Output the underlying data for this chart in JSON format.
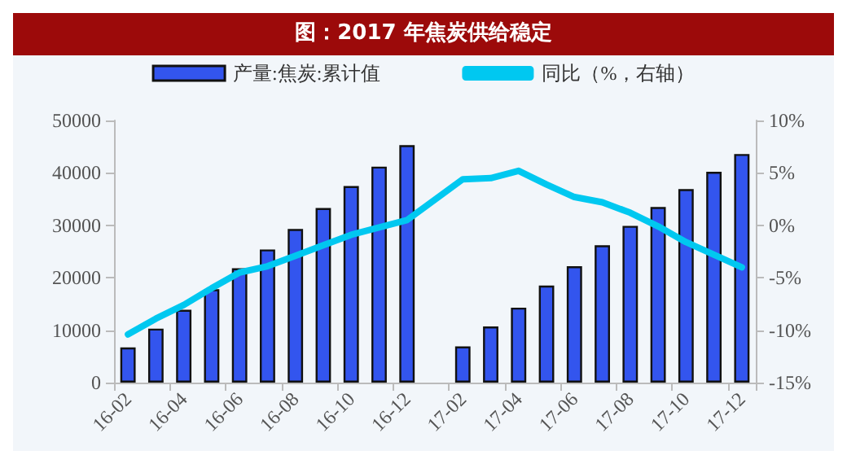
{
  "chart_data": {
    "type": "bar",
    "title": "图：2017 年焦炭供给稳定",
    "categories": [
      "16-02",
      null,
      "16-04",
      null,
      "16-06",
      null,
      "16-08",
      null,
      "16-10",
      null,
      "16-12",
      null,
      "17-02",
      null,
      "17-04",
      null,
      "17-06",
      null,
      "17-08",
      null,
      "17-10",
      null,
      "17-12"
    ],
    "series": [
      {
        "name": "产量:焦炭:累计值",
        "color": "#3355ee",
        "values": [
          6700,
          10300,
          13900,
          17800,
          21800,
          25400,
          29300,
          33300,
          37500,
          41200,
          45300,
          null,
          6900,
          10700,
          14300,
          18500,
          22200,
          26200,
          29900,
          33500,
          36900,
          40200,
          43600
        ]
      },
      {
        "name": "同比（%，右轴）",
        "type": "line",
        "axis": "y2",
        "color": "#00c8f0",
        "values": [
          -10.4,
          -8.9,
          -7.6,
          -6.0,
          -4.5,
          -3.9,
          -2.9,
          -1.9,
          -0.9,
          -0.2,
          0.5,
          null,
          4.4,
          4.5,
          5.2,
          3.9,
          2.7,
          2.2,
          1.2,
          -0.1,
          -1.6,
          -2.8,
          -4.0
        ]
      }
    ],
    "ylim": [
      0,
      50000
    ],
    "yticks": [
      0,
      10000,
      20000,
      30000,
      40000,
      50000
    ],
    "y2lim": [
      -15,
      10
    ],
    "y2ticks": [
      {
        "value": -15,
        "label": "-15%"
      },
      {
        "value": -10,
        "label": "-10%"
      },
      {
        "value": -5,
        "label": "-5%"
      },
      {
        "value": 0,
        "label": "0%"
      },
      {
        "value": 5,
        "label": "5%"
      },
      {
        "value": 10,
        "label": "10%"
      }
    ],
    "legend": "top",
    "grid": false,
    "marker": "none",
    "line_style": "solid"
  }
}
